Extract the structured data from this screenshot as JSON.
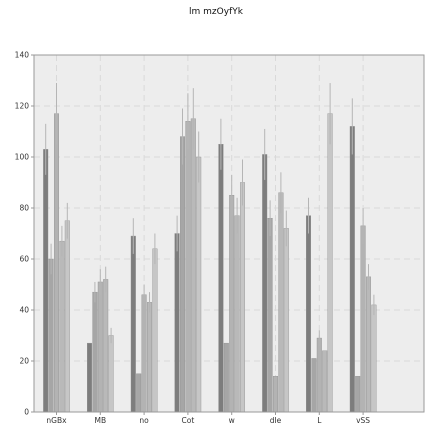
{
  "chart_data": {
    "type": "bar",
    "title": "lm mzOyfYk",
    "xlabel": "",
    "ylabel": "",
    "categories": [
      "nGBx",
      "MB",
      "no",
      "Cot",
      "w",
      "dIe",
      "L",
      "vSS"
    ],
    "ylim": [
      0,
      140
    ],
    "yticks": [
      0,
      20,
      40,
      60,
      80,
      100,
      120,
      140
    ],
    "grid": true,
    "legend": "none",
    "series": [
      {
        "values": [
          103,
          27,
          69,
          70,
          105,
          101,
          77,
          112
        ],
        "errors": [
          10,
          0,
          7,
          7,
          10,
          10,
          7,
          11
        ]
      },
      {
        "values": [
          60,
          47,
          15,
          108,
          27,
          76,
          21,
          14
        ],
        "errors": [
          6,
          4,
          0,
          11,
          0,
          7,
          0,
          0
        ]
      },
      {
        "values": [
          117,
          51,
          46,
          114,
          85,
          14,
          29,
          73
        ],
        "errors": [
          12,
          5,
          4,
          11,
          8,
          0,
          3,
          7
        ]
      },
      {
        "values": [
          67,
          52,
          43,
          115,
          77,
          86,
          24,
          53
        ],
        "errors": [
          6,
          5,
          4,
          12,
          7,
          8,
          0,
          5
        ]
      },
      {
        "values": [
          75,
          30,
          64,
          100,
          90,
          72,
          117,
          42
        ],
        "errors": [
          7,
          3,
          6,
          10,
          9,
          7,
          12,
          4
        ]
      }
    ],
    "colors": {
      "plot_background": "#ededed",
      "grid": "#d9d9d9",
      "axis": "#999999",
      "series_fills": [
        "#7d7d7d",
        "#a6a6a6",
        "#b3b3b3",
        "#b9b9b9",
        "#c6c6c6"
      ],
      "error_bars": "#b5b5b5"
    }
  }
}
